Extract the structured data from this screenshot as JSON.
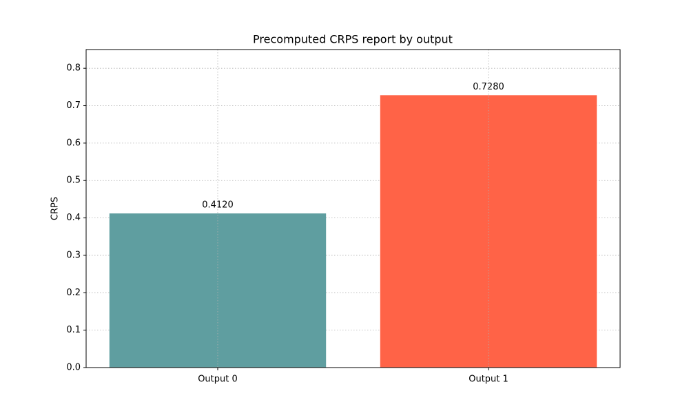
{
  "chart_data": {
    "type": "bar",
    "title": "Precomputed CRPS report by output",
    "y_label": "CRPS",
    "categories": [
      "Output 0",
      "Output 1"
    ],
    "values": [
      0.412,
      0.728
    ],
    "value_labels": [
      "0.4120",
      "0.7280"
    ],
    "colors": [
      "#5f9ea0",
      "#ff6347"
    ],
    "ylim": [
      0,
      0.85
    ],
    "yticks": [
      {
        "value": 0,
        "label": "0.0"
      },
      0.1,
      0.2,
      0.3,
      0.4,
      0.5,
      0.6,
      0.7,
      0.8
    ],
    "grid": true
  }
}
